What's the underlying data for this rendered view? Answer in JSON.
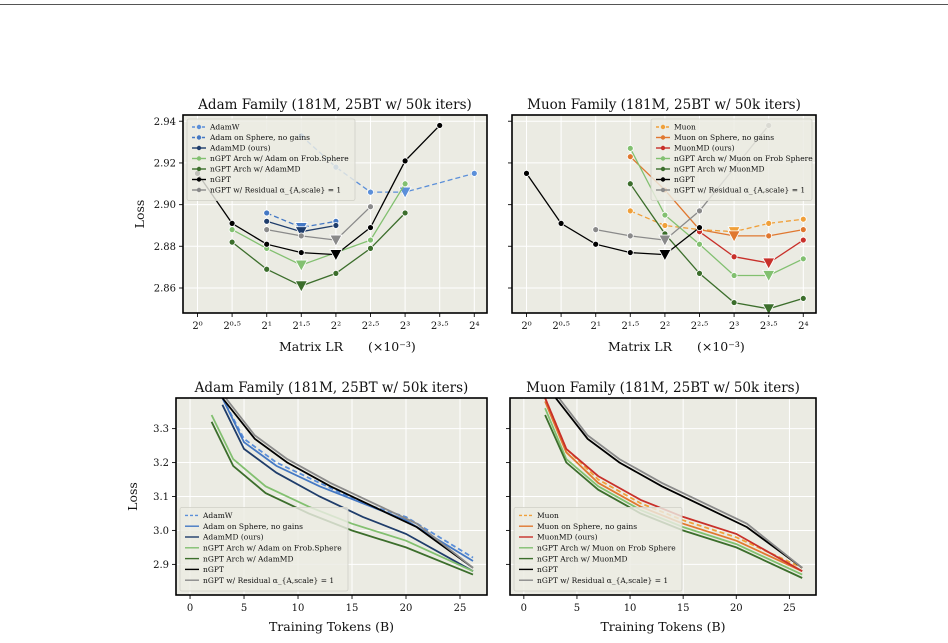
{
  "colors": {
    "AdamW": "#5b8fd9",
    "Adam on Sphere, no gains": "#4478c4",
    "AdamMD (ours)": "#1f3d6b",
    "Muon": "#f0a03a",
    "Muon on Sphere, no gains": "#e07830",
    "MuonMD (ours)": "#c8302a",
    "nGPT Arch w/ Adam on Frob.Sphere": "#82c070",
    "nGPT Arch w/ Muon on Frob Sphere": "#82c070",
    "nGPT Arch w/ AdamMD": "#3c6e2c",
    "nGPT Arch w/ MuonMD": "#3c6e2c",
    "nGPT": "#000000",
    "nGPT w/ Residual": "#8a8a8a"
  },
  "chart_data": [
    {
      "type": "line",
      "title": "Adam Family (181M, 25BT w/ 50k iters)",
      "xlabel": "Matrix LR",
      "xlabel_unit": "(×10⁻³)",
      "ylabel": "Loss",
      "x_ticks": [
        "2⁰",
        "2⁰·⁵",
        "2¹",
        "2¹·⁵",
        "2²",
        "2²·⁵",
        "2³",
        "2³·⁵",
        "2⁴"
      ],
      "y_ticks": [
        "2.86",
        "2.88",
        "2.90",
        "2.92",
        "2.94"
      ],
      "ylim": [
        2.848,
        2.943
      ],
      "legend_position": "top-left",
      "series": [
        {
          "name": "AdamW",
          "dashed": true,
          "x": [
            3,
            4,
            5,
            6,
            8
          ],
          "y": [
            2.933,
            2.918,
            2.906,
            2.906,
            2.915
          ],
          "best": 6
        },
        {
          "name": "Adam on Sphere, no gains",
          "dashed": true,
          "x": [
            2,
            3,
            4
          ],
          "y": [
            2.896,
            2.889,
            2.892
          ],
          "best": 3
        },
        {
          "name": "AdamMD (ours)",
          "dashed": false,
          "x": [
            2,
            3,
            4
          ],
          "y": [
            2.892,
            2.887,
            2.89
          ],
          "best": 3
        },
        {
          "name": "nGPT Arch w/ Adam on Frob.Sphere",
          "dashed": false,
          "x": [
            1,
            2,
            3,
            4,
            5,
            6
          ],
          "y": [
            2.888,
            2.879,
            2.871,
            2.877,
            2.883,
            2.91
          ],
          "best": 3
        },
        {
          "name": "nGPT Arch w/ AdamMD",
          "dashed": false,
          "x": [
            1,
            2,
            3,
            4,
            5,
            6
          ],
          "y": [
            2.882,
            2.869,
            2.861,
            2.867,
            2.879,
            2.896
          ],
          "best": 3
        },
        {
          "name": "nGPT",
          "dashed": false,
          "x": [
            0,
            1,
            2,
            3,
            4,
            5,
            6,
            7
          ],
          "y": [
            2.915,
            2.891,
            2.881,
            2.877,
            2.876,
            2.889,
            2.921,
            2.938
          ],
          "best": 4
        },
        {
          "name": "nGPT w/ Residual α_{A,scale} = 1",
          "dashed": false,
          "x": [
            2,
            3,
            4,
            5
          ],
          "y": [
            2.888,
            2.885,
            2.883,
            2.899
          ],
          "best": 4
        }
      ]
    },
    {
      "type": "line",
      "title": "Muon Family (181M, 25BT w/ 50k iters)",
      "xlabel": "Matrix LR",
      "xlabel_unit": "(×10⁻³)",
      "ylabel": "",
      "x_ticks": [
        "2⁰",
        "2⁰·⁵",
        "2¹",
        "2¹·⁵",
        "2²",
        "2²·⁵",
        "2³",
        "2³·⁵",
        "2⁴"
      ],
      "ylim": [
        2.848,
        2.943
      ],
      "legend_position": "top-right",
      "series": [
        {
          "name": "Muon",
          "dashed": true,
          "x": [
            3,
            4,
            5,
            6,
            7,
            8
          ],
          "y": [
            2.897,
            2.89,
            2.888,
            2.887,
            2.891,
            2.893
          ],
          "best": 6
        },
        {
          "name": "Muon on Sphere, no gains",
          "dashed": false,
          "x": [
            3,
            4,
            5,
            6,
            7,
            8
          ],
          "y": [
            2.923,
            2.907,
            2.888,
            2.885,
            2.885,
            2.888
          ],
          "best": 6
        },
        {
          "name": "MuonMD (ours)",
          "dashed": false,
          "x": [
            5,
            6,
            7,
            8
          ],
          "y": [
            2.887,
            2.875,
            2.872,
            2.883
          ],
          "best": 7
        },
        {
          "name": "nGPT Arch w/ Muon on Frob Sphere",
          "dashed": false,
          "x": [
            3,
            4,
            5,
            6,
            7,
            8
          ],
          "y": [
            2.927,
            2.895,
            2.881,
            2.866,
            2.866,
            2.874
          ],
          "best": 7
        },
        {
          "name": "nGPT Arch w/ MuonMD",
          "dashed": false,
          "x": [
            3,
            4,
            5,
            6,
            7,
            8
          ],
          "y": [
            2.91,
            2.886,
            2.867,
            2.853,
            2.85,
            2.855
          ],
          "best": 7
        },
        {
          "name": "nGPT",
          "dashed": false,
          "x": [
            0,
            1,
            2,
            3,
            4,
            5
          ],
          "y": [
            2.915,
            2.891,
            2.881,
            2.877,
            2.876,
            2.889
          ],
          "best": 4
        },
        {
          "name": "nGPT w/ Residual α_{A,scale} = 1",
          "dashed": false,
          "x": [
            2,
            3,
            4,
            5,
            7
          ],
          "y": [
            2.888,
            2.885,
            2.883,
            2.897,
            2.938
          ],
          "best": 4
        }
      ]
    },
    {
      "type": "line",
      "title": "Adam Family (181M, 25BT w/ 50k iters)",
      "xlabel": "Training Tokens (B)",
      "ylabel": "Loss",
      "x_ticks": [
        "0",
        "5",
        "10",
        "15",
        "20",
        "25"
      ],
      "y_ticks": [
        "2.9",
        "3.0",
        "3.1",
        "3.2",
        "3.3"
      ],
      "xlim": [
        -1.3,
        27.5
      ],
      "ylim": [
        2.81,
        3.39
      ],
      "legend_position": "bottom-left",
      "series": [
        {
          "name": "AdamW",
          "dashed": true,
          "x": [
            3,
            5,
            8,
            12,
            16,
            20,
            26.2
          ],
          "y": [
            3.39,
            3.27,
            3.2,
            3.14,
            3.08,
            3.04,
            2.92
          ]
        },
        {
          "name": "Adam on Sphere, no gains",
          "dashed": false,
          "x": [
            3,
            5,
            8,
            12,
            16,
            20,
            26.2
          ],
          "y": [
            3.39,
            3.26,
            3.19,
            3.13,
            3.08,
            3.03,
            2.91
          ]
        },
        {
          "name": "AdamMD (ours)",
          "dashed": false,
          "x": [
            3,
            5,
            8,
            12,
            16,
            20,
            26.2
          ],
          "y": [
            3.37,
            3.24,
            3.17,
            3.1,
            3.04,
            2.99,
            2.88
          ]
        },
        {
          "name": "nGPT Arch w/ Adam on Frob.Sphere",
          "dashed": false,
          "x": [
            2,
            4,
            7,
            11,
            15,
            20,
            26.2
          ],
          "y": [
            3.34,
            3.21,
            3.13,
            3.07,
            3.02,
            2.97,
            2.88
          ]
        },
        {
          "name": "nGPT Arch w/ AdamMD",
          "dashed": false,
          "x": [
            2,
            4,
            7,
            11,
            15,
            20,
            26.2
          ],
          "y": [
            3.32,
            3.19,
            3.11,
            3.05,
            3.0,
            2.95,
            2.87
          ]
        },
        {
          "name": "nGPT",
          "dashed": false,
          "x": [
            3,
            6,
            9,
            13,
            17,
            21,
            26.2
          ],
          "y": [
            3.39,
            3.27,
            3.2,
            3.13,
            3.07,
            3.01,
            2.89
          ]
        },
        {
          "name": "nGPT w/ Residual α_{A,scale} = 1",
          "dashed": false,
          "x": [
            3.3,
            6,
            9,
            13,
            17,
            21,
            26.2
          ],
          "y": [
            3.39,
            3.28,
            3.21,
            3.14,
            3.08,
            3.02,
            2.89
          ]
        }
      ]
    },
    {
      "type": "line",
      "title": "Muon Family (181M, 25BT w/ 50k iters)",
      "xlabel": "Training Tokens (B)",
      "ylabel": "",
      "x_ticks": [
        "0",
        "5",
        "10",
        "15",
        "20",
        "25"
      ],
      "xlim": [
        -1.3,
        27.5
      ],
      "ylim": [
        2.81,
        3.39
      ],
      "legend_position": "bottom-left",
      "series": [
        {
          "name": "Muon",
          "dashed": true,
          "x": [
            2,
            4,
            7,
            11,
            15,
            20,
            26.2
          ],
          "y": [
            3.39,
            3.24,
            3.15,
            3.08,
            3.03,
            2.98,
            2.89
          ]
        },
        {
          "name": "Muon on Sphere, no gains",
          "dashed": false,
          "x": [
            2,
            4,
            7,
            11,
            15,
            20,
            26.2
          ],
          "y": [
            3.38,
            3.23,
            3.14,
            3.07,
            3.02,
            2.97,
            2.88
          ]
        },
        {
          "name": "MuonMD (ours)",
          "dashed": false,
          "x": [
            2,
            4,
            7,
            11,
            15,
            20,
            26.2
          ],
          "y": [
            3.39,
            3.24,
            3.16,
            3.09,
            3.04,
            2.99,
            2.88
          ]
        },
        {
          "name": "nGPT Arch w/ Muon on Frob Sphere",
          "dashed": false,
          "x": [
            2,
            4,
            7,
            11,
            15,
            20,
            26.2
          ],
          "y": [
            3.36,
            3.21,
            3.13,
            3.06,
            3.01,
            2.96,
            2.87
          ]
        },
        {
          "name": "nGPT Arch w/ MuonMD",
          "dashed": false,
          "x": [
            2,
            4,
            7,
            11,
            15,
            20,
            26.2
          ],
          "y": [
            3.34,
            3.2,
            3.12,
            3.05,
            3.0,
            2.95,
            2.86
          ]
        },
        {
          "name": "nGPT",
          "dashed": false,
          "x": [
            3,
            6,
            9,
            13,
            17,
            21,
            26.2
          ],
          "y": [
            3.39,
            3.27,
            3.2,
            3.13,
            3.07,
            3.01,
            2.89
          ]
        },
        {
          "name": "nGPT w/ Residual α_{A,scale} = 1",
          "dashed": false,
          "x": [
            3.3,
            6,
            9,
            13,
            17,
            21,
            26.2
          ],
          "y": [
            3.39,
            3.28,
            3.21,
            3.14,
            3.08,
            3.02,
            2.89
          ]
        }
      ]
    }
  ]
}
